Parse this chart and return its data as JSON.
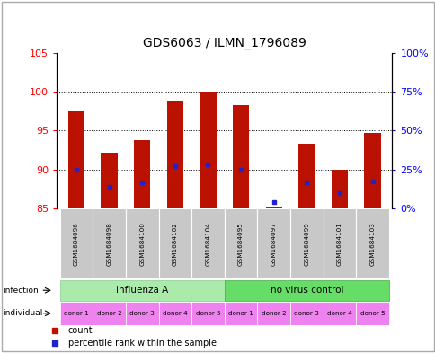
{
  "title": "GDS6063 / ILMN_1796089",
  "samples": [
    "GSM1684096",
    "GSM1684098",
    "GSM1684100",
    "GSM1684102",
    "GSM1684104",
    "GSM1684095",
    "GSM1684097",
    "GSM1684099",
    "GSM1684101",
    "GSM1684103"
  ],
  "bar_heights": [
    97.5,
    92.2,
    93.8,
    98.8,
    100.0,
    98.3,
    85.2,
    93.3,
    90.0,
    94.7
  ],
  "bar_base": 85,
  "blue_dot_y": [
    90.0,
    87.8,
    88.3,
    90.4,
    90.7,
    90.0,
    85.8,
    88.3,
    87.0,
    88.5
  ],
  "ylim_left": [
    85,
    105
  ],
  "yticks_left": [
    85,
    90,
    95,
    100,
    105
  ],
  "yticks_right": [
    0,
    25,
    50,
    75,
    100
  ],
  "ytick_labels_right": [
    "0%",
    "25%",
    "50%",
    "75%",
    "100%"
  ],
  "infection_labels": [
    "influenza A",
    "no virus control"
  ],
  "infection_colors": [
    "#AAEAAA",
    "#66DD66"
  ],
  "individual_labels": [
    "donor 1",
    "donor 2",
    "donor 3",
    "donor 4",
    "donor 5",
    "donor 1",
    "donor 2",
    "donor 3",
    "donor 4",
    "donor 5"
  ],
  "individual_color": "#EE82EE",
  "sample_box_color": "#C8C8C8",
  "bar_color": "#BB1100",
  "blue_dot_color": "#2222CC",
  "label_infection": "infection",
  "label_individual": "individual",
  "legend_count": "count",
  "legend_percentile": "percentile rank within the sample"
}
